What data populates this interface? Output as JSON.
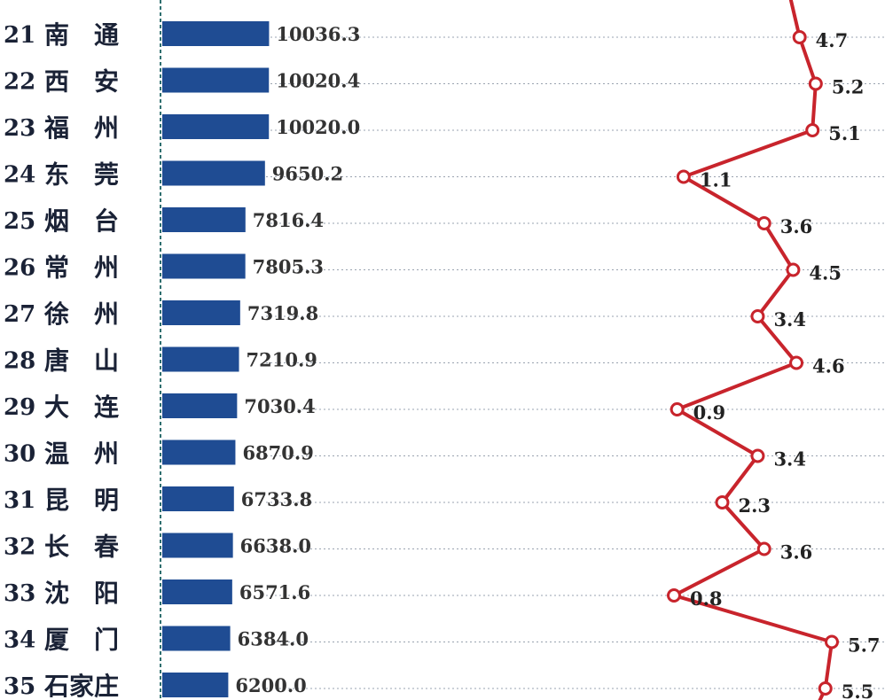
{
  "chart_data": {
    "type": "bar",
    "categories": [
      "南　通",
      "西　安",
      "福　州",
      "东　莞",
      "烟　台",
      "常　州",
      "徐　州",
      "唐　山",
      "大　连",
      "温　州",
      "昆　明",
      "长　春",
      "沈　阳",
      "厦　门",
      "石家庄"
    ],
    "ranks": [
      "21",
      "22",
      "23",
      "24",
      "25",
      "26",
      "27",
      "28",
      "29",
      "30",
      "31",
      "32",
      "33",
      "34",
      "35"
    ],
    "values": [
      10036.3,
      10020.4,
      10020.0,
      9650.2,
      7816.4,
      7805.3,
      7319.8,
      7210.9,
      7030.4,
      6870.9,
      6733.8,
      6638.0,
      6571.6,
      6384.0,
      6200.0
    ],
    "value_labels": [
      "10036.3",
      "10020.4",
      "10020.0",
      "9650.2",
      "7816.4",
      "7805.3",
      "7319.8",
      "7210.9",
      "7030.4",
      "6870.9",
      "6733.8",
      "6638.0",
      "6571.6",
      "6384.0",
      "6200.0"
    ],
    "growth": [
      4.7,
      5.2,
      5.1,
      1.1,
      3.6,
      4.5,
      3.4,
      4.6,
      0.9,
      3.4,
      2.3,
      3.6,
      0.8,
      5.7,
      5.5
    ],
    "growth_labels": [
      "4.7",
      "5.2",
      "5.1",
      "1.1",
      "3.6",
      "4.5",
      "3.4",
      "4.6",
      "0.9",
      "3.4",
      "2.3",
      "3.6",
      "0.8",
      "5.7",
      "5.5"
    ],
    "growth_range": [
      -1,
      6.2
    ],
    "bar_color": "#1f4c93",
    "line_color": "#c8242c",
    "marker_fill": "#ffffff",
    "grid": "dotted",
    "title": "",
    "xlabel": "",
    "ylabel": ""
  }
}
